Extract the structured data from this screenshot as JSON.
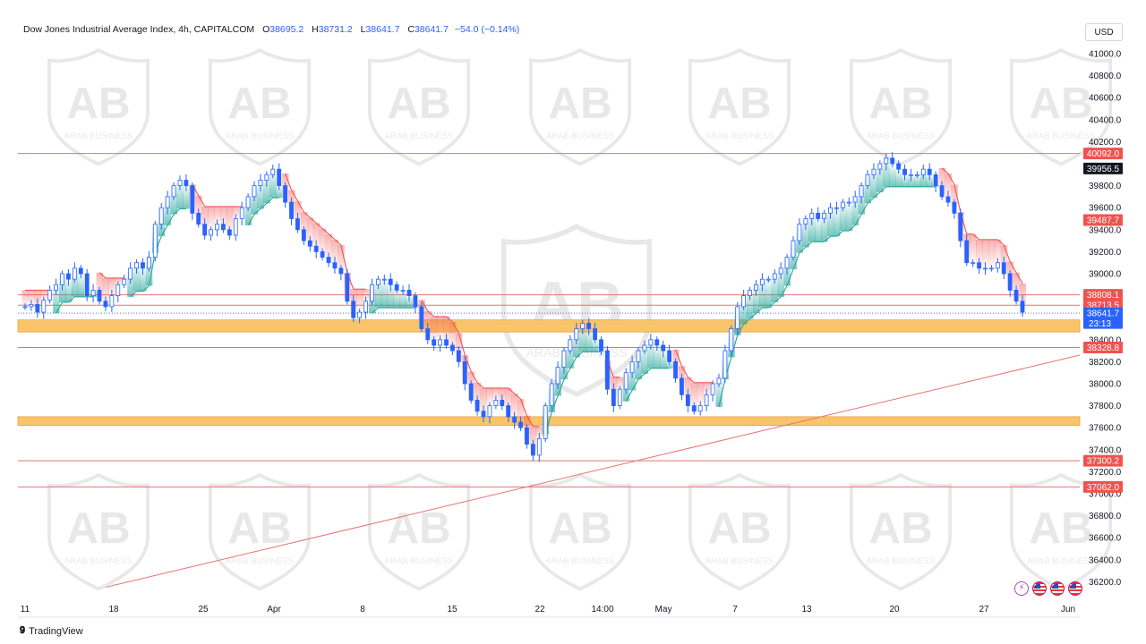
{
  "header": {
    "title": "Dow Jones Industrial Average Index, 4h, CAPITALCOM",
    "open_label": "O",
    "open": "38695.2",
    "high_label": "H",
    "high": "38731.2",
    "low_label": "L",
    "low": "38641.7",
    "close_label": "C",
    "close": "38641.7",
    "change": "−54.0 (−0.14%)"
  },
  "currency": "USD",
  "footer": {
    "brand": "TradingView"
  },
  "watermark": {
    "text": "ARAB BUSINESS"
  },
  "icons": [
    "flash-icon",
    "us-flag-icon",
    "us-flag-icon",
    "us-flag-icon"
  ],
  "colors": {
    "up": "#2962ff",
    "down": "#2962ff",
    "resistance_line": "#e57373",
    "zone": "#f9c56b",
    "supertrend_down": "#ef5350",
    "supertrend_up": "#26a69a",
    "last_price": "#2962ff"
  },
  "chart_data": {
    "type": "candlestick",
    "y_range": [
      36100,
      41150
    ],
    "y_ticks": [
      "41000.0",
      "40800.0",
      "40600.0",
      "40400.0",
      "40200.0",
      "39800.0",
      "39600.0",
      "39400.0",
      "39200.0",
      "39000.0",
      "38400.0",
      "38200.0",
      "38000.0",
      "37800.0",
      "37600.0",
      "37400.0",
      "37200.0",
      "37000.0",
      "36800.0",
      "36600.0",
      "36400.0",
      "36200.0"
    ],
    "x_labels": [
      "11",
      "18",
      "25",
      "Apr",
      "8",
      "15",
      "22",
      "14:00",
      "May",
      "7",
      "13",
      "20",
      "27",
      "Jun"
    ],
    "horizontal_lines": [
      {
        "value": 40092.0,
        "label": "40092.0"
      },
      {
        "value": 38808.1,
        "label": "38808.1"
      },
      {
        "value": 38713.5,
        "label": "38713.5"
      },
      {
        "value": 38328.8,
        "label": "38328.8"
      },
      {
        "value": 37300.2,
        "label": "37300.2"
      },
      {
        "value": 37062.0,
        "label": "37062.0"
      }
    ],
    "price_labels": [
      {
        "value": 39956.5,
        "label": "39956.5",
        "style": "dark"
      },
      {
        "value": 39487.7,
        "label": "39487.7",
        "style": "red"
      },
      {
        "value": 38641.7,
        "label": "38641.7",
        "style": "blue",
        "sub": "23:13"
      }
    ],
    "zones": [
      {
        "from": 38470,
        "to": 38580
      },
      {
        "from": 37620,
        "to": 37700
      }
    ],
    "trendline": {
      "from": {
        "x": "14",
        "y": 36150
      },
      "to": {
        "x": "Jun",
        "y": 38260
      }
    },
    "path": [
      38700,
      38720,
      38650,
      38760,
      38850,
      38900,
      39000,
      38950,
      39050,
      39000,
      38800,
      38850,
      38750,
      38700,
      38800,
      38900,
      38950,
      39050,
      39100,
      39050,
      39150,
      39450,
      39600,
      39700,
      39800,
      39850,
      39800,
      39550,
      39450,
      39350,
      39400,
      39450,
      39400,
      39350,
      39500,
      39600,
      39700,
      39800,
      39850,
      39900,
      39950,
      39800,
      39650,
      39500,
      39400,
      39300,
      39250,
      39200,
      39150,
      39100,
      39050,
      39000,
      38750,
      38600,
      38650,
      38750,
      38900,
      38950,
      38950,
      38900,
      38850,
      38850,
      38800,
      38700,
      38500,
      38400,
      38350,
      38400,
      38350,
      38300,
      38200,
      38000,
      37850,
      37750,
      37700,
      37800,
      37850,
      37800,
      37700,
      37650,
      37600,
      37450,
      37350,
      37500,
      37800,
      38000,
      38150,
      38300,
      38400,
      38500,
      38550,
      38500,
      38400,
      38300,
      37950,
      37800,
      37950,
      38100,
      38200,
      38300,
      38350,
      38400,
      38350,
      38300,
      38200,
      38050,
      37900,
      37800,
      37750,
      37800,
      37900,
      38000,
      38050,
      38300,
      38500,
      38700,
      38800,
      38850,
      38900,
      38950,
      38950,
      39000,
      39050,
      39150,
      39300,
      39450,
      39500,
      39550,
      39500,
      39550,
      39600,
      39600,
      39650,
      39650,
      39700,
      39800,
      39900,
      39950,
      40000,
      40050,
      40000,
      39950,
      39900,
      39900,
      39900,
      39950,
      39900,
      39800,
      39700,
      39650,
      39550,
      39300,
      39100,
      39100,
      39050,
      39050,
      39050,
      39100,
      39000,
      38850,
      38750,
      38650
    ]
  }
}
